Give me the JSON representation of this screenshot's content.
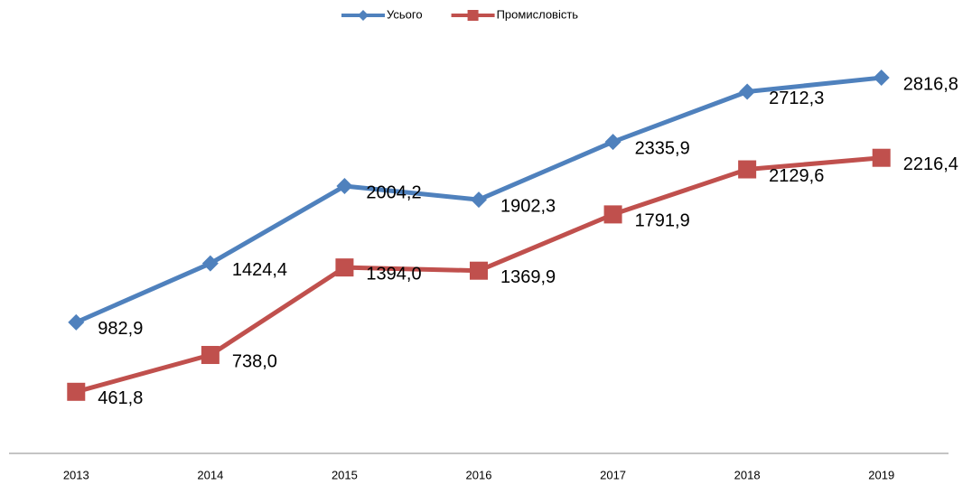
{
  "chart_data": {
    "type": "line",
    "categories": [
      "2013",
      "2014",
      "2015",
      "2016",
      "2017",
      "2018",
      "2019"
    ],
    "series": [
      {
        "name": "Усього",
        "color": "#4f81bd",
        "marker": "diamond",
        "values": [
          982.9,
          1424.4,
          2004.2,
          1902.3,
          2335.9,
          2712.3,
          2816.8
        ],
        "value_labels": [
          "982,9",
          "1424,4",
          "2004,2",
          "1902,3",
          "2335,9",
          "2712,3",
          "2816,8"
        ]
      },
      {
        "name": "Промисловість",
        "color": "#c0504d",
        "marker": "square",
        "values": [
          461.8,
          738.0,
          1394.0,
          1369.9,
          1791.9,
          2129.6,
          2216.4
        ],
        "value_labels": [
          "461,8",
          "738,0",
          "1394,0",
          "1369,9",
          "1791,9",
          "2129,6",
          "2216,4"
        ]
      }
    ],
    "ylim": [
      0,
      3000
    ],
    "legend": "top"
  }
}
